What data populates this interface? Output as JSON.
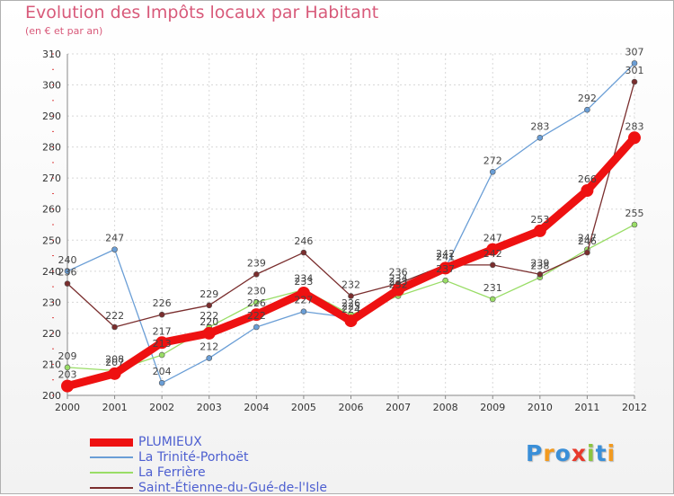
{
  "title": "Evolution des Impôts locaux par Habitant",
  "subtitle": "(en € et par an)",
  "logo": {
    "text": "Proxiti",
    "letters": [
      {
        "ch": "P",
        "color": "#3a8fd8"
      },
      {
        "ch": "r",
        "color": "#f29a1f"
      },
      {
        "ch": "o",
        "color": "#3a8fd8"
      },
      {
        "ch": "x",
        "color": "#e8392b"
      },
      {
        "ch": "i",
        "color": "#8bc53f"
      },
      {
        "ch": "t",
        "color": "#3a8fd8"
      },
      {
        "ch": "i",
        "color": "#f29a1f"
      }
    ]
  },
  "chart_data": {
    "type": "line",
    "title": "Evolution des Impôts locaux par Habitant",
    "ylabel": "en € et par an",
    "xlabel": "",
    "x": [
      "2000",
      "2001",
      "2002",
      "2003",
      "2004",
      "2005",
      "2006",
      "2007",
      "2008",
      "2009",
      "2010",
      "2011",
      "2012"
    ],
    "ylim": [
      200,
      310
    ],
    "yticks": [
      200,
      210,
      220,
      230,
      240,
      250,
      260,
      270,
      280,
      290,
      300,
      310
    ],
    "grid": true,
    "legend": "bottom-left",
    "series": [
      {
        "name": "PLUMIEUX",
        "color": "#ee1111",
        "width": 9,
        "marker": 7,
        "values": [
          203,
          207,
          217,
          220,
          226,
          233,
          224,
          234,
          241,
          247,
          253,
          266,
          283
        ]
      },
      {
        "name": "La Trinité-Porhoët",
        "color": "#6a9ed6",
        "width": 1.3,
        "marker": 3,
        "values": [
          240,
          247,
          204,
          212,
          222,
          227,
          225,
          233,
          241,
          272,
          283,
          292,
          307
        ]
      },
      {
        "name": "La Ferrière",
        "color": "#99dd66",
        "width": 1.3,
        "marker": 3,
        "values": [
          209,
          208,
          213,
          222,
          230,
          234,
          226,
          232,
          237,
          231,
          238,
          247,
          255
        ]
      },
      {
        "name": "Saint-Étienne-du-Gué-de-l'Isle",
        "color": "#7a2e2e",
        "width": 1.3,
        "marker": 3,
        "values": [
          236,
          222,
          226,
          229,
          239,
          246,
          232,
          236,
          242,
          242,
          239,
          246,
          301
        ]
      }
    ]
  }
}
